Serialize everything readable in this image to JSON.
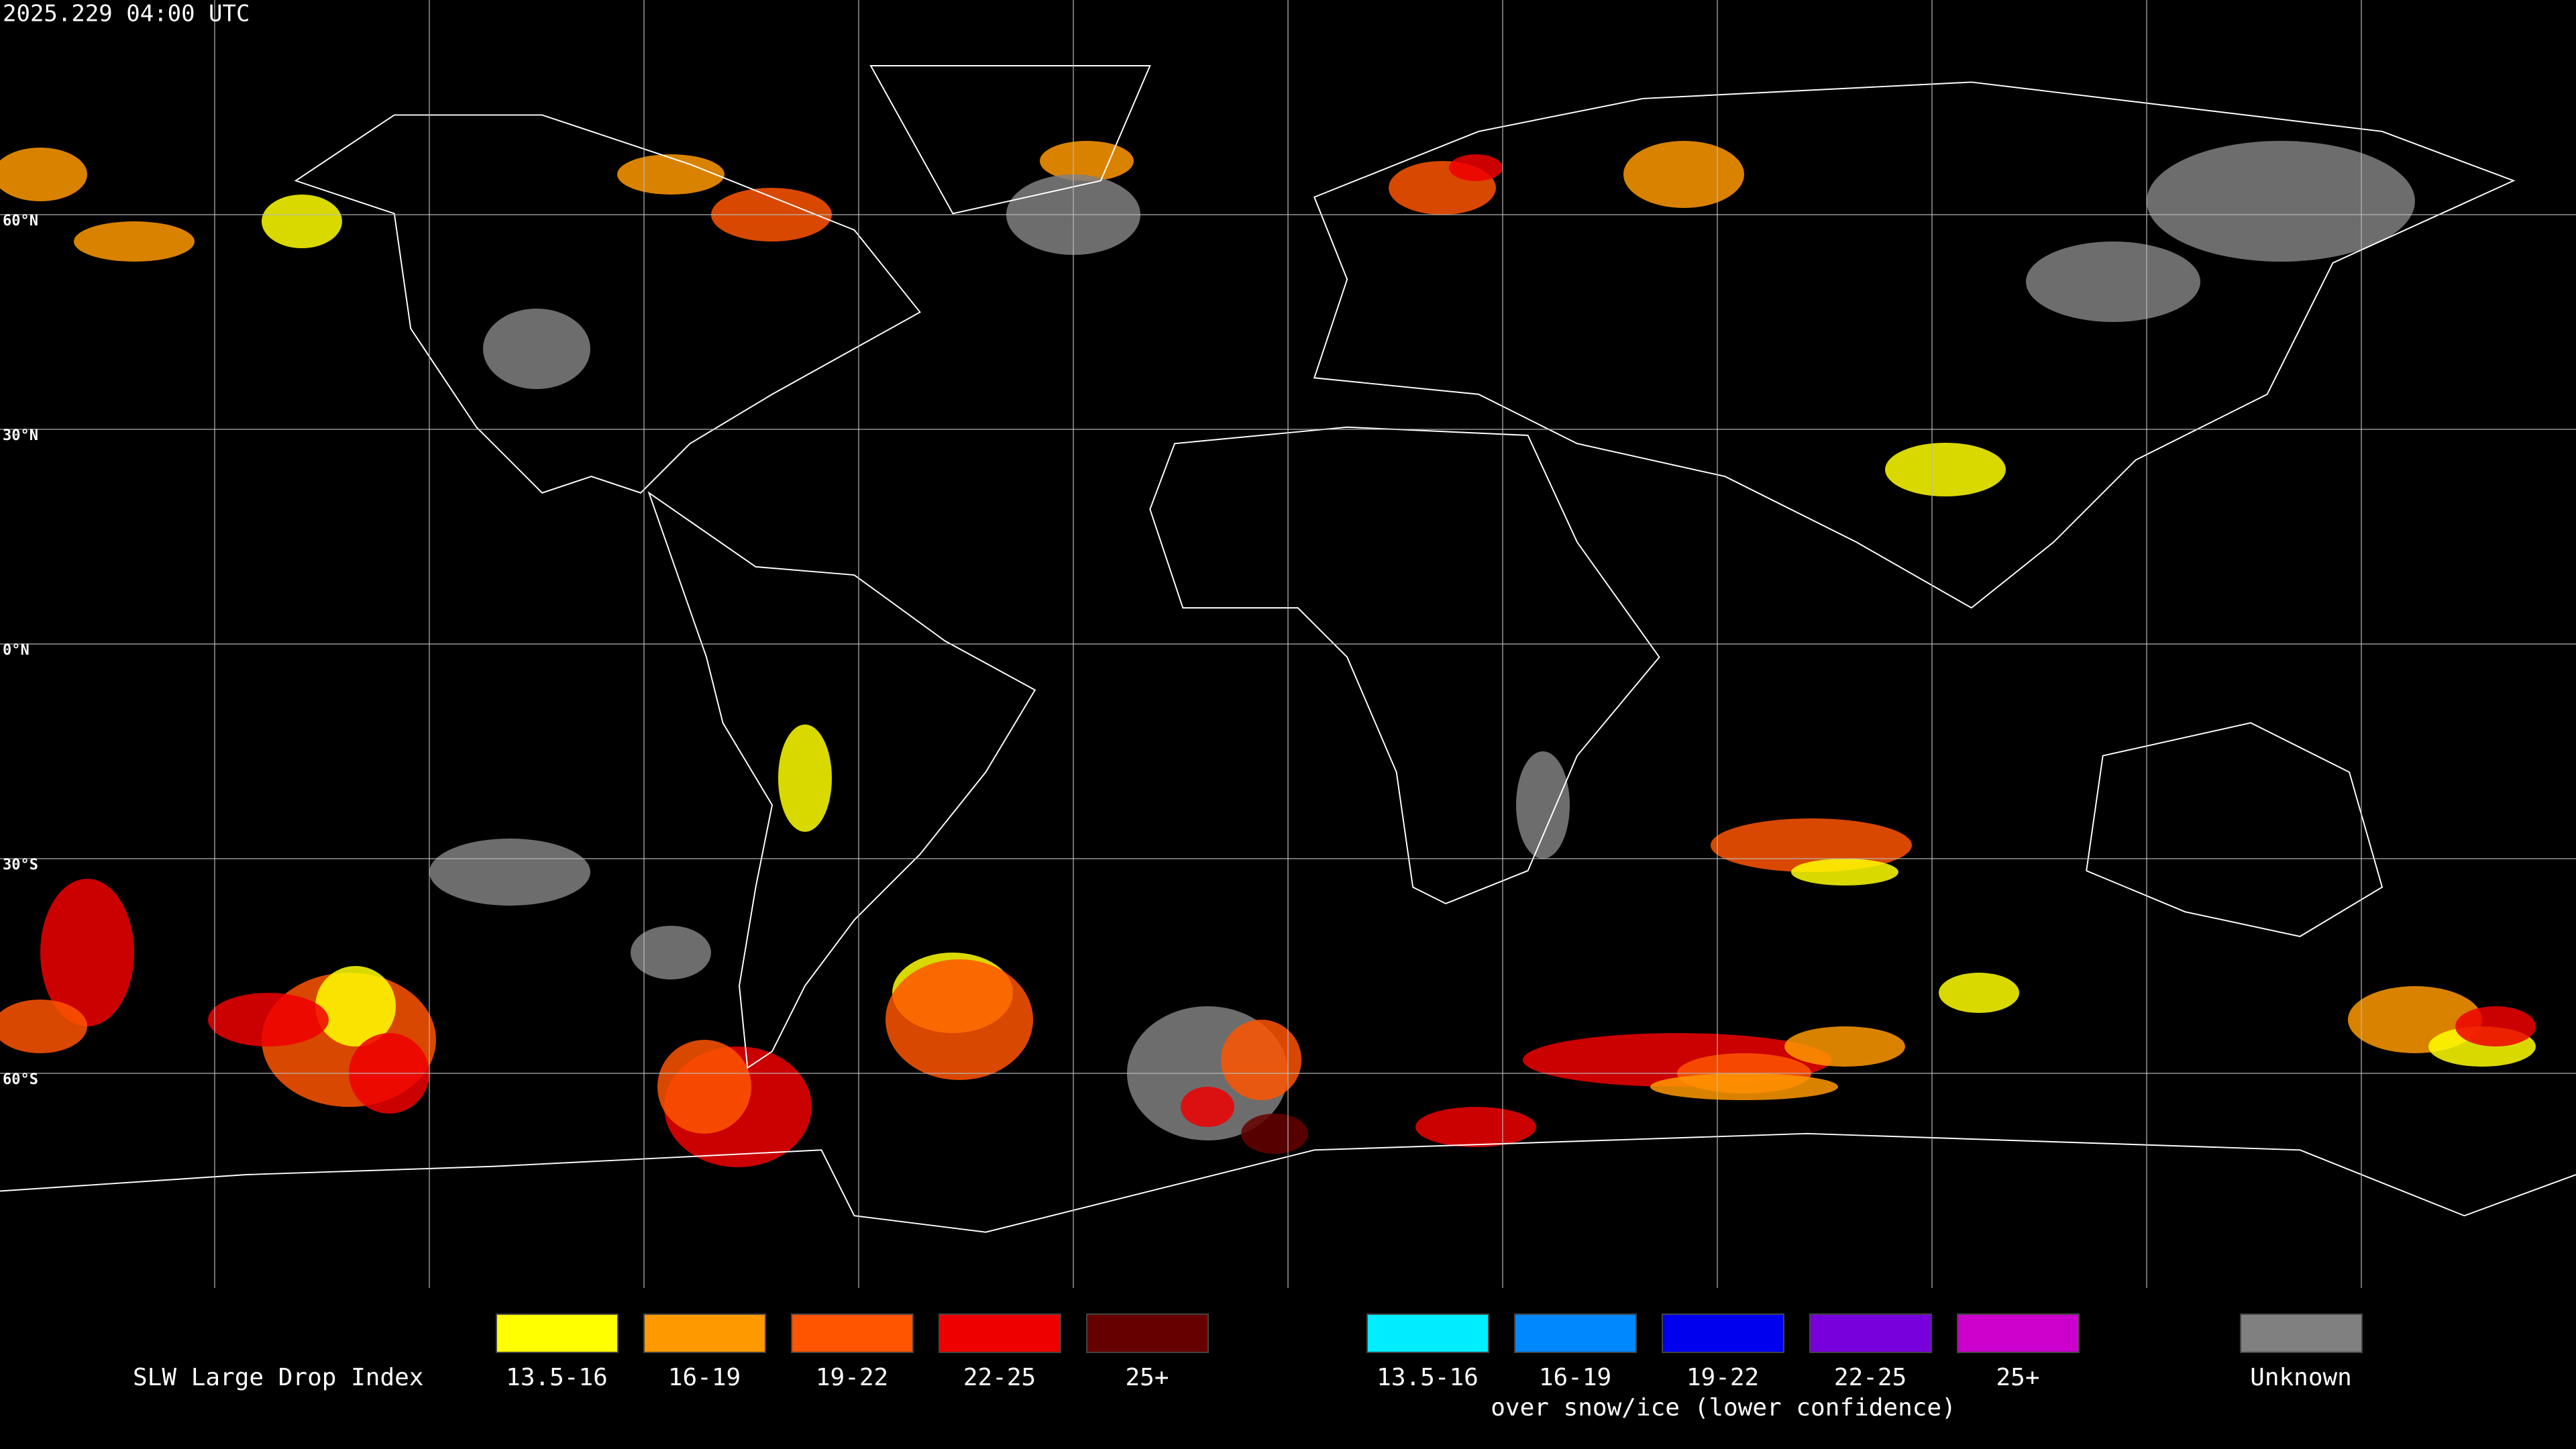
{
  "header": {
    "timestamp": "2025.229 04:00 UTC"
  },
  "map": {
    "lat_labels": [
      "60°N",
      "30°N",
      "0°N",
      "30°S",
      "60°S"
    ]
  },
  "legend": {
    "title": "SLW Large Drop Index",
    "items": [
      {
        "label": "13.5-16",
        "color": "#ffff00"
      },
      {
        "label": "16-19",
        "color": "#ff9900"
      },
      {
        "label": "19-22",
        "color": "#ff5500"
      },
      {
        "label": "22-25",
        "color": "#ee0000"
      },
      {
        "label": "25+",
        "color": "#660000"
      }
    ],
    "snow_items": [
      {
        "label": "13.5-16",
        "color": "#00eeff"
      },
      {
        "label": "16-19",
        "color": "#0088ff"
      },
      {
        "label": "19-22",
        "color": "#0000ee"
      },
      {
        "label": "22-25",
        "color": "#7700dd"
      },
      {
        "label": "25+",
        "color": "#cc00cc"
      }
    ],
    "snow_caption": "over snow/ice (lower confidence)",
    "unknown": {
      "label": "Unknown",
      "color": "#808080"
    }
  }
}
